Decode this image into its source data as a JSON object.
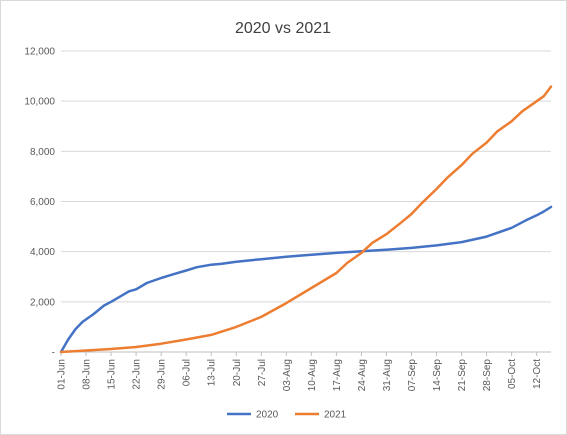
{
  "chart_data": {
    "type": "line",
    "title": "2020 vs 2021",
    "xlabel": "",
    "ylabel": "",
    "ylim": [
      0,
      12000
    ],
    "yticks": [
      0,
      2000,
      4000,
      6000,
      8000,
      10000,
      12000
    ],
    "ytick_labels": [
      "-",
      "2,000",
      "4,000",
      "6,000",
      "8,000",
      "10,000",
      "12,000"
    ],
    "x_start": "01-Jun",
    "x_end": "16-Oct",
    "xtick_labels": [
      "01-Jun",
      "08-Jun",
      "15-Jun",
      "22-Jun",
      "29-Jun",
      "06-Jul",
      "13-Jul",
      "20-Jul",
      "27-Jul",
      "03-Aug",
      "10-Aug",
      "17-Aug",
      "24-Aug",
      "31-Aug",
      "07-Sep",
      "14-Sep",
      "21-Sep",
      "28-Sep",
      "05-Oct",
      "12-Oct"
    ],
    "grid": true,
    "legend_position": "bottom",
    "series": [
      {
        "name": "2020",
        "color": "#4472c4",
        "points": [
          [
            "01-Jun",
            0
          ],
          [
            "03-Jun",
            500
          ],
          [
            "05-Jun",
            900
          ],
          [
            "07-Jun",
            1200
          ],
          [
            "10-Jun",
            1500
          ],
          [
            "13-Jun",
            1850
          ],
          [
            "15-Jun",
            2000
          ],
          [
            "18-Jun",
            2250
          ],
          [
            "20-Jun",
            2420
          ],
          [
            "22-Jun",
            2500
          ],
          [
            "25-Jun",
            2750
          ],
          [
            "29-Jun",
            2950
          ],
          [
            "02-Jul",
            3080
          ],
          [
            "06-Jul",
            3250
          ],
          [
            "09-Jul",
            3380
          ],
          [
            "13-Jul",
            3480
          ],
          [
            "16-Jul",
            3520
          ],
          [
            "20-Jul",
            3600
          ],
          [
            "27-Jul",
            3700
          ],
          [
            "03-Aug",
            3800
          ],
          [
            "10-Aug",
            3880
          ],
          [
            "17-Aug",
            3950
          ],
          [
            "24-Aug",
            4020
          ],
          [
            "31-Aug",
            4080
          ],
          [
            "07-Sep",
            4150
          ],
          [
            "14-Sep",
            4250
          ],
          [
            "21-Sep",
            4380
          ],
          [
            "28-Sep",
            4600
          ],
          [
            "05-Oct",
            4950
          ],
          [
            "09-Oct",
            5250
          ],
          [
            "12-Oct",
            5450
          ],
          [
            "14-Oct",
            5600
          ],
          [
            "16-Oct",
            5780
          ]
        ]
      },
      {
        "name": "2021",
        "color": "#ed7d31",
        "points": [
          [
            "01-Jun",
            0
          ],
          [
            "08-Jun",
            60
          ],
          [
            "15-Jun",
            120
          ],
          [
            "22-Jun",
            200
          ],
          [
            "29-Jun",
            330
          ],
          [
            "06-Jul",
            500
          ],
          [
            "13-Jul",
            680
          ],
          [
            "20-Jul",
            1000
          ],
          [
            "27-Jul",
            1400
          ],
          [
            "03-Aug",
            1950
          ],
          [
            "10-Aug",
            2550
          ],
          [
            "17-Aug",
            3150
          ],
          [
            "20-Aug",
            3550
          ],
          [
            "24-Aug",
            3950
          ],
          [
            "27-Aug",
            4350
          ],
          [
            "31-Aug",
            4700
          ],
          [
            "04-Sep",
            5150
          ],
          [
            "07-Sep",
            5500
          ],
          [
            "10-Sep",
            5950
          ],
          [
            "14-Sep",
            6500
          ],
          [
            "17-Sep",
            6950
          ],
          [
            "21-Sep",
            7450
          ],
          [
            "24-Sep",
            7900
          ],
          [
            "28-Sep",
            8350
          ],
          [
            "01-Oct",
            8800
          ],
          [
            "05-Oct",
            9200
          ],
          [
            "08-Oct",
            9600
          ],
          [
            "12-Oct",
            10000
          ],
          [
            "14-Oct",
            10200
          ],
          [
            "16-Oct",
            10580
          ]
        ]
      }
    ]
  }
}
